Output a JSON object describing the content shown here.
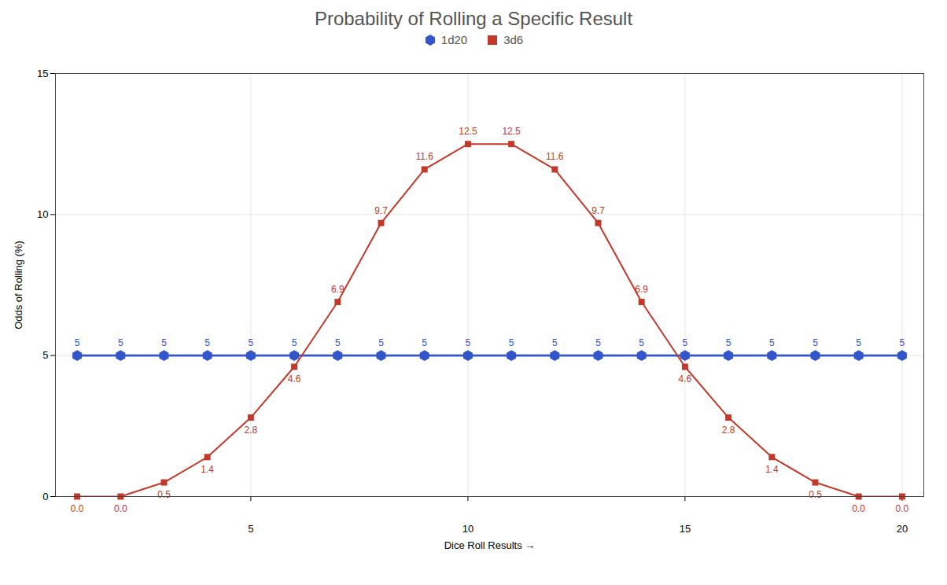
{
  "chart_data": {
    "type": "line",
    "title": "Probability of Rolling a Specific Result",
    "xlabel": "Dice Roll Results",
    "ylabel": "Odds of Rolling (%)",
    "x": [
      1,
      2,
      3,
      4,
      5,
      6,
      7,
      8,
      9,
      10,
      11,
      12,
      13,
      14,
      15,
      16,
      17,
      18,
      19,
      20
    ],
    "series": [
      {
        "name": "1d20",
        "color": "#3355cc",
        "marker": "hexagon",
        "line_style": "solid",
        "values": [
          5,
          5,
          5,
          5,
          5,
          5,
          5,
          5,
          5,
          5,
          5,
          5,
          5,
          5,
          5,
          5,
          5,
          5,
          5,
          5
        ]
      },
      {
        "name": "3d6",
        "color": "#c0392b",
        "marker": "square",
        "line_style": "solid",
        "values": [
          0.0,
          0.0,
          0.5,
          1.4,
          2.8,
          4.6,
          6.9,
          9.7,
          11.6,
          12.5,
          12.5,
          11.6,
          9.7,
          6.9,
          4.6,
          2.8,
          1.4,
          0.5,
          0.0,
          0.0
        ],
        "value_labels": [
          "0.0",
          "0.0",
          "0.5",
          "1.4",
          "2.8",
          "4.6",
          "6.9",
          "9.7",
          "11.6",
          "12.5",
          "12.5",
          "11.6",
          "9.7",
          "6.9",
          "4.6",
          "2.8",
          "1.4",
          "0.5",
          "0.0",
          "0.0"
        ]
      }
    ],
    "xlim": [
      0.5,
      20.5
    ],
    "xticks": [
      5,
      10,
      15,
      20
    ],
    "ylim": [
      0,
      15
    ],
    "yticks": [
      0,
      5,
      10,
      15
    ],
    "grid": true,
    "legend": "top",
    "data_labels": true
  }
}
